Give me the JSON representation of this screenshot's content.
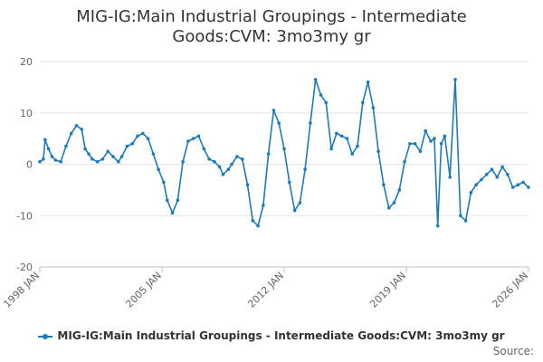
{
  "chart_data": {
    "type": "line",
    "title_lines": [
      "MIG-IG:Main Industrial Groupings - Intermediate",
      "Goods:CVM: 3mo3my gr"
    ],
    "xlabel": "",
    "ylabel": "",
    "y_ticks": [
      "20",
      "10",
      "0",
      "-10",
      "-20"
    ],
    "x_ticks": [
      "1998 JAN",
      "2005 JAN",
      "2012 JAN",
      "2019 JAN",
      "2026 JAN"
    ],
    "ylim": [
      -20,
      20
    ],
    "xlim": [
      1998.0,
      2026.0
    ],
    "grid": true,
    "legend_position": "bottom",
    "series": [
      {
        "name": "MIG-IG:Main Industrial Groupings - Intermediate Goods:CVM: 3mo3my gr",
        "color": "#1f7ab8",
        "x": [
          1998.0,
          1998.2,
          1998.3,
          1998.5,
          1998.7,
          1998.9,
          1999.2,
          1999.5,
          1999.8,
          2000.1,
          2000.4,
          2000.6,
          2000.8,
          2001.0,
          2001.3,
          2001.6,
          2001.9,
          2002.2,
          2002.5,
          2002.7,
          2003.0,
          2003.3,
          2003.6,
          2003.9,
          2004.2,
          2004.5,
          2004.8,
          2005.1,
          2005.3,
          2005.6,
          2005.9,
          2006.2,
          2006.5,
          2006.8,
          2007.1,
          2007.4,
          2007.7,
          2008.0,
          2008.3,
          2008.5,
          2008.8,
          2009.0,
          2009.3,
          2009.6,
          2009.9,
          2010.2,
          2010.5,
          2010.8,
          2011.1,
          2011.4,
          2011.7,
          2012.0,
          2012.3,
          2012.6,
          2012.9,
          2013.2,
          2013.5,
          2013.8,
          2014.1,
          2014.4,
          2014.7,
          2015.0,
          2015.3,
          2015.6,
          2015.9,
          2016.2,
          2016.5,
          2016.8,
          2017.1,
          2017.4,
          2017.7,
          2018.0,
          2018.3,
          2018.6,
          2018.9,
          2019.2,
          2019.5,
          2019.8,
          2020.1,
          2020.4,
          2020.6,
          2020.8,
          2021.0,
          2021.2,
          2021.5,
          2021.8,
          2022.1,
          2022.4,
          2022.7,
          2023.0,
          2023.3,
          2023.6,
          2023.9,
          2024.2,
          2024.5,
          2024.8,
          2025.1,
          2025.4,
          2025.7,
          2026.0
        ],
        "values": [
          0.5,
          1.0,
          4.8,
          3.0,
          1.5,
          0.8,
          0.5,
          3.5,
          6.0,
          7.5,
          6.8,
          3.0,
          2.0,
          1.0,
          0.5,
          1.0,
          2.5,
          1.5,
          0.5,
          1.5,
          3.5,
          4.0,
          5.5,
          6.0,
          5.0,
          2.0,
          -1.0,
          -3.5,
          -7.0,
          -9.5,
          -7.0,
          0.5,
          4.5,
          5.0,
          5.5,
          3.0,
          1.0,
          0.5,
          -0.5,
          -2.0,
          -1.0,
          0.0,
          1.5,
          1.0,
          -4.0,
          -11.0,
          -12.0,
          -8.0,
          2.0,
          10.5,
          8.0,
          3.0,
          -3.5,
          -9.0,
          -7.5,
          -1.0,
          8.0,
          16.5,
          13.5,
          12.0,
          3.0,
          6.0,
          5.5,
          5.0,
          2.0,
          3.5,
          12.0,
          16.0,
          11.0,
          2.5,
          -4.0,
          -8.5,
          -7.5,
          -5.0,
          0.5,
          4.0,
          4.0,
          2.5,
          6.5,
          4.5,
          5.0,
          -12.0,
          4.0,
          5.5,
          -2.5,
          16.5,
          -10.0,
          -11.0,
          -5.5,
          -4.0,
          -3.0,
          -2.0,
          -1.0,
          -2.5,
          -0.5,
          -2.0,
          -4.5,
          -4.0,
          -3.5,
          -4.5
        ]
      }
    ]
  },
  "source_label": "Source:"
}
